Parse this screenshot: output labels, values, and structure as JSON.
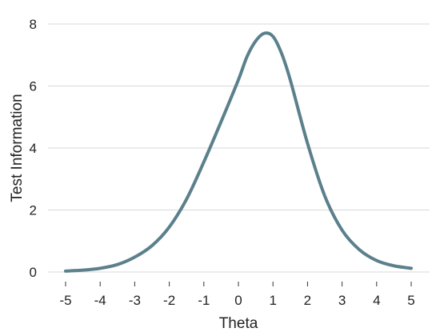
{
  "chart_data": {
    "type": "line",
    "title": "",
    "xlabel": "Theta",
    "ylabel": "Test Information",
    "xlim": [
      -5,
      5
    ],
    "ylim": [
      0,
      8
    ],
    "xticks": [
      -5,
      -4,
      -3,
      -2,
      -1,
      0,
      1,
      2,
      3,
      4,
      5
    ],
    "yticks": [
      0,
      2,
      4,
      6,
      8
    ],
    "grid": "horizontal",
    "legend": "none",
    "series": [
      {
        "color": "#5b808c",
        "x": [
          -5,
          -4.5,
          -4,
          -3.5,
          -3,
          -2.5,
          -2,
          -1.5,
          -1,
          -0.5,
          0,
          0.25,
          0.5,
          0.75,
          1,
          1.25,
          1.5,
          2,
          2.5,
          3,
          3.5,
          4,
          4.5,
          5
        ],
        "y": [
          0.03,
          0.06,
          0.12,
          0.24,
          0.48,
          0.85,
          1.45,
          2.35,
          3.55,
          4.85,
          6.2,
          6.95,
          7.45,
          7.7,
          7.6,
          7.05,
          6.2,
          4.15,
          2.45,
          1.35,
          0.72,
          0.37,
          0.2,
          0.12
        ]
      }
    ]
  }
}
